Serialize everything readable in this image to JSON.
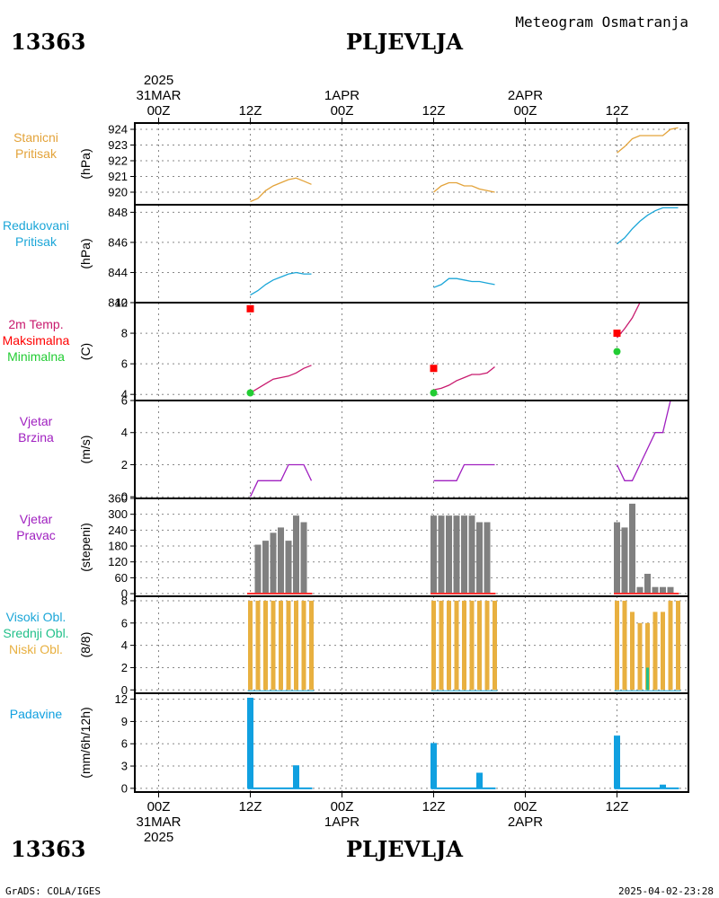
{
  "header": {
    "station_id": "13363",
    "station_name": "PLJEVLJA",
    "subtitle": "Meteogram Osmatranja"
  },
  "time_axis": {
    "top": [
      {
        "lines": [
          "2025",
          "31MAR",
          "00Z"
        ]
      },
      {
        "lines": [
          "12Z"
        ]
      },
      {
        "lines": [
          "1APR",
          "00Z"
        ]
      },
      {
        "lines": [
          "12Z"
        ]
      },
      {
        "lines": [
          "2APR",
          "00Z"
        ]
      },
      {
        "lines": [
          "12Z"
        ]
      }
    ],
    "bottom": [
      {
        "lines": [
          "00Z",
          "31MAR",
          "2025"
        ]
      },
      {
        "lines": [
          "12Z"
        ]
      },
      {
        "lines": [
          "00Z",
          "1APR"
        ]
      },
      {
        "lines": [
          "12Z"
        ]
      },
      {
        "lines": [
          "00Z",
          "2APR"
        ]
      },
      {
        "lines": [
          "12Z"
        ]
      }
    ]
  },
  "footer": {
    "left": "GrADS: COLA/IGES",
    "right": "2025-04-02-23:28"
  },
  "colors": {
    "pressure": "#e3a33a",
    "reduced": "#1ba6d8",
    "temp": "#c81a6e",
    "max": "#ff0000",
    "min": "#22cc33",
    "wind": "#a020c0",
    "dir_bar": "#808080",
    "dir_base": "#ff3030",
    "cloud_low": "#e8b040",
    "cloud_mid": "#22c08a",
    "cloud_high": "#1ba6d8",
    "precip": "#10a0e0"
  },
  "chart_data": [
    {
      "type": "line",
      "panel_labels": [
        "Stanicni",
        "Pritisak"
      ],
      "ylabel": "(hPa)",
      "yticks": [
        "924",
        "923",
        "922",
        "921",
        "920"
      ],
      "ylim": [
        919.2,
        924.4
      ],
      "x_units": "hours since 31MAR 00Z",
      "series": [
        {
          "x": [
            12,
            13,
            14,
            15,
            16,
            17,
            18,
            19,
            20
          ],
          "y": [
            919.4,
            919.6,
            920.1,
            920.4,
            920.6,
            920.8,
            920.9,
            920.7,
            920.5
          ]
        },
        {
          "x": [
            36,
            37,
            38,
            39,
            40,
            41,
            42,
            43,
            44
          ],
          "y": [
            920.0,
            920.4,
            920.6,
            920.6,
            920.4,
            920.4,
            920.2,
            920.1,
            920.0
          ]
        },
        {
          "x": [
            60,
            61,
            62,
            63,
            64,
            65,
            66,
            67,
            68
          ],
          "y": [
            922.5,
            922.9,
            923.4,
            923.6,
            923.6,
            923.6,
            923.6,
            924.0,
            924.1
          ]
        }
      ]
    },
    {
      "type": "line",
      "panel_labels": [
        "Redukovani",
        "Pritisak"
      ],
      "ylabel": "(hPa)",
      "yticks": [
        "848",
        "846",
        "844",
        "842"
      ],
      "ylim": [
        842.0,
        848.5
      ],
      "x_units": "hours since 31MAR 00Z",
      "series": [
        {
          "x": [
            12,
            13,
            14,
            15,
            16,
            17,
            18,
            19,
            20
          ],
          "y": [
            842.5,
            842.8,
            843.2,
            843.5,
            843.7,
            843.9,
            844.0,
            843.9,
            843.9
          ]
        },
        {
          "x": [
            36,
            37,
            38,
            39,
            40,
            41,
            42,
            43,
            44
          ],
          "y": [
            843.0,
            843.2,
            843.6,
            843.6,
            843.5,
            843.4,
            843.4,
            843.3,
            843.2
          ]
        },
        {
          "x": [
            60,
            61,
            62,
            63,
            64,
            65,
            66,
            67,
            68
          ],
          "y": [
            845.9,
            846.3,
            846.9,
            847.4,
            847.8,
            848.1,
            848.3,
            848.3,
            848.3
          ]
        }
      ]
    },
    {
      "type": "line",
      "panel_labels": [
        "2m Temp.",
        "Maksimalna",
        "Minimalna"
      ],
      "ylabel": "(C)",
      "yticks": [
        "10",
        "8",
        "6",
        "4"
      ],
      "ylim": [
        3.6,
        10.0
      ],
      "x_units": "hours since 31MAR 00Z",
      "series": [
        {
          "x": [
            12,
            13,
            14,
            15,
            16,
            17,
            18,
            19,
            20
          ],
          "y": [
            4.1,
            4.4,
            4.7,
            5.0,
            5.1,
            5.2,
            5.4,
            5.7,
            5.9
          ]
        },
        {
          "x": [
            36,
            37,
            38,
            39,
            40,
            41,
            42,
            43,
            44
          ],
          "y": [
            4.3,
            4.4,
            4.6,
            4.9,
            5.1,
            5.3,
            5.3,
            5.4,
            5.8
          ]
        },
        {
          "x": [
            60,
            61,
            62,
            63
          ],
          "y": [
            7.7,
            8.3,
            9.0,
            10.0
          ]
        }
      ],
      "max_points": [
        {
          "x": 12,
          "y": 9.6
        },
        {
          "x": 36,
          "y": 5.7
        },
        {
          "x": 60,
          "y": 8.0
        }
      ],
      "min_points": [
        {
          "x": 12,
          "y": 4.1
        },
        {
          "x": 36,
          "y": 4.1
        },
        {
          "x": 60,
          "y": 6.8
        }
      ]
    },
    {
      "type": "line",
      "panel_labels": [
        "Vjetar",
        "Brzina"
      ],
      "ylabel": "(m/s)",
      "yticks": [
        "6",
        "4",
        "2",
        "0"
      ],
      "ylim": [
        -0.1,
        6.0
      ],
      "x_units": "hours since 31MAR 00Z",
      "series": [
        {
          "x": [
            12,
            13,
            14,
            15,
            16,
            17,
            18,
            19,
            20
          ],
          "y": [
            0,
            1,
            1,
            1,
            1,
            2,
            2,
            2,
            1
          ]
        },
        {
          "x": [
            36,
            37,
            38,
            39,
            40,
            41,
            42,
            43,
            44
          ],
          "y": [
            1,
            1,
            1,
            1,
            2,
            2,
            2,
            2,
            2
          ]
        },
        {
          "x": [
            60,
            61,
            62,
            63,
            64,
            65,
            66,
            67,
            68
          ],
          "y": [
            2,
            1,
            1,
            2,
            3,
            4,
            4,
            6,
            6
          ]
        }
      ]
    },
    {
      "type": "bar",
      "panel_labels": [
        "Vjetar",
        "Pravac"
      ],
      "ylabel": "(stepeni)",
      "yticks": [
        "360",
        "300",
        "240",
        "180",
        "120",
        "60",
        "0"
      ],
      "ylim": [
        -10,
        360
      ],
      "x_units": "hours since 31MAR 00Z",
      "series": [
        {
          "x": [
            12,
            13,
            14,
            15,
            16,
            17,
            18,
            19,
            20
          ],
          "y": [
            0,
            185,
            200,
            230,
            250,
            200,
            295,
            270,
            0
          ]
        },
        {
          "x": [
            36,
            37,
            38,
            39,
            40,
            41,
            42,
            43,
            44
          ],
          "y": [
            295,
            295,
            295,
            295,
            295,
            295,
            270,
            270,
            0
          ]
        },
        {
          "x": [
            60,
            61,
            62,
            63,
            64,
            65,
            66,
            67,
            68
          ],
          "y": [
            270,
            250,
            340,
            25,
            75,
            25,
            25,
            25,
            0
          ]
        }
      ]
    },
    {
      "type": "bar",
      "panel_labels": [
        "Visoki Obl.",
        "Srednji Obl.",
        "Niski Obl."
      ],
      "ylabel": "(8/8)",
      "yticks": [
        "8",
        "6",
        "4",
        "2",
        "0"
      ],
      "ylim": [
        -0.3,
        8.4
      ],
      "x_units": "hours since 31MAR 00Z",
      "series": [
        {
          "x": [
            12,
            13,
            14,
            15,
            16,
            17,
            18,
            19,
            20
          ],
          "y": [
            8,
            8,
            8,
            8,
            8,
            8,
            8,
            8,
            8
          ]
        },
        {
          "x": [
            36,
            37,
            38,
            39,
            40,
            41,
            42,
            43,
            44
          ],
          "y": [
            8,
            8,
            8,
            8,
            8,
            8,
            8,
            8,
            8
          ]
        },
        {
          "x": [
            60,
            61,
            62,
            63,
            64,
            65,
            66,
            67,
            68
          ],
          "y": [
            8,
            8,
            7,
            6,
            6,
            7,
            7,
            8,
            8
          ]
        }
      ],
      "mid_cloud": [
        {
          "x": 64,
          "y": 2
        }
      ]
    },
    {
      "type": "bar",
      "panel_labels": [
        "Padavine"
      ],
      "ylabel": "(mm/6h/12h)",
      "yticks": [
        "12",
        "9",
        "6",
        "3",
        "0"
      ],
      "ylim": [
        -0.5,
        12.8
      ],
      "x_units": "hours since 31MAR 00Z",
      "series": [
        {
          "x": [
            12,
            13,
            14,
            15,
            16,
            17,
            18,
            19,
            20
          ],
          "y": [
            12.2,
            0.1,
            0.1,
            0.1,
            0.1,
            0.1,
            3.1,
            0.1,
            0
          ]
        },
        {
          "x": [
            36,
            37,
            38,
            39,
            40,
            41,
            42,
            43,
            44
          ],
          "y": [
            6.1,
            0.1,
            0.1,
            0.1,
            0.1,
            0.1,
            2.1,
            0.1,
            0
          ]
        },
        {
          "x": [
            60,
            61,
            62,
            63,
            64,
            65,
            66,
            67,
            68
          ],
          "y": [
            7.1,
            0.1,
            0.1,
            0.1,
            0.1,
            0.1,
            0.5,
            0.1,
            0
          ]
        }
      ]
    }
  ]
}
